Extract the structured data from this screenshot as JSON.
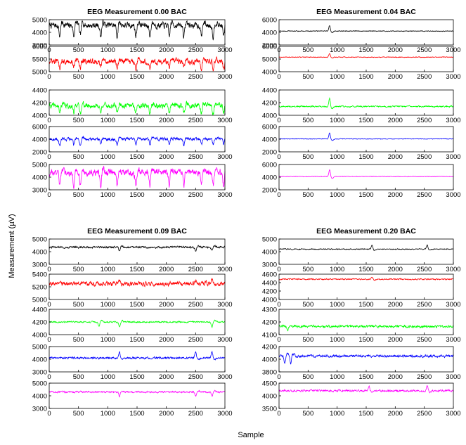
{
  "figure": {
    "ylabel": "Measurement (µV)",
    "xlabel": "Sample"
  },
  "chart_data": [
    {
      "type": "line",
      "title": "EEG Measurement 0.00 BAC",
      "xlim": [
        0,
        3000
      ],
      "xticks": [
        0,
        500,
        1000,
        1500,
        2000,
        2500,
        3000
      ],
      "channels": [
        {
          "color": "#000000",
          "ylim": [
            3000,
            5000
          ],
          "yticks": [
            3000,
            4000,
            5000
          ],
          "baseline": 4550,
          "noise": 260,
          "spike_dir": -1,
          "spike_amp": 900,
          "spikes": [
            180,
            420,
            530,
            880,
            1160,
            1480,
            1720,
            2050,
            2300,
            2600,
            2800,
            2980
          ]
        },
        {
          "color": "#ff0000",
          "ylim": [
            5000,
            6000
          ],
          "yticks": [
            5000,
            5500,
            6000
          ],
          "baseline": 5400,
          "noise": 120,
          "spike_dir": -1,
          "spike_amp": 250,
          "spikes": [
            180,
            420,
            530,
            880,
            1160,
            1480,
            1720,
            2050,
            2300,
            2600,
            2800,
            2980
          ]
        },
        {
          "color": "#00ff00",
          "ylim": [
            4000,
            4400
          ],
          "yticks": [
            4000,
            4200,
            4400
          ],
          "baseline": 4150,
          "noise": 45,
          "spike_dir": -1,
          "spike_amp": 120,
          "spikes": [
            180,
            420,
            530,
            880,
            1160,
            1480,
            1720,
            2050,
            2300,
            2600,
            2800,
            2980
          ]
        },
        {
          "color": "#0000ff",
          "ylim": [
            2000,
            6000
          ],
          "yticks": [
            2000,
            4000,
            6000
          ],
          "baseline": 4000,
          "noise": 250,
          "spike_dir": -1,
          "spike_amp": 900,
          "spikes": [
            180,
            420,
            530,
            880,
            1160,
            1480,
            1720,
            2050,
            2300,
            2600,
            2800,
            2980
          ]
        },
        {
          "color": "#ff00ff",
          "ylim": [
            3000,
            5000
          ],
          "yticks": [
            3000,
            4000,
            5000
          ],
          "baseline": 4350,
          "noise": 280,
          "spike_dir": -1,
          "spike_amp": 1000,
          "spikes": [
            180,
            420,
            530,
            880,
            1160,
            1480,
            1720,
            2050,
            2300,
            2600,
            2800,
            2980
          ]
        }
      ]
    },
    {
      "type": "line",
      "title": "EEG Measurement 0.04 BAC",
      "xlim": [
        0,
        3000
      ],
      "xticks": [
        0,
        500,
        1000,
        1500,
        2000,
        2500,
        3000
      ],
      "channels": [
        {
          "color": "#000000",
          "ylim": [
            2000,
            6000
          ],
          "yticks": [
            2000,
            4000,
            6000
          ],
          "baseline": 4200,
          "noise": 60,
          "spike_dir": 1,
          "spike_amp": 900,
          "spikes": [
            870
          ]
        },
        {
          "color": "#ff0000",
          "ylim": [
            4000,
            6000
          ],
          "yticks": [
            4000,
            5000,
            6000
          ],
          "baseline": 5150,
          "noise": 30,
          "spike_dir": 1,
          "spike_amp": 300,
          "spikes": [
            870
          ]
        },
        {
          "color": "#00ff00",
          "ylim": [
            4000,
            4400
          ],
          "yticks": [
            4000,
            4200,
            4400
          ],
          "baseline": 4140,
          "noise": 12,
          "spike_dir": 1,
          "spike_amp": 130,
          "spikes": [
            870
          ]
        },
        {
          "color": "#0000ff",
          "ylim": [
            2000,
            6000
          ],
          "yticks": [
            2000,
            4000,
            6000
          ],
          "baseline": 4050,
          "noise": 50,
          "spike_dir": 1,
          "spike_amp": 1000,
          "spikes": [
            870
          ]
        },
        {
          "color": "#ff00ff",
          "ylim": [
            2000,
            6000
          ],
          "yticks": [
            2000,
            4000,
            6000
          ],
          "baseline": 4100,
          "noise": 50,
          "spike_dir": 1,
          "spike_amp": 1100,
          "spikes": [
            870
          ]
        }
      ]
    },
    {
      "type": "line",
      "title": "EEG Measurement 0.09 BAC",
      "xlim": [
        0,
        3000
      ],
      "xticks": [
        0,
        500,
        1000,
        1500,
        2000,
        2500,
        3000
      ],
      "channels": [
        {
          "color": "#000000",
          "ylim": [
            3000,
            5000
          ],
          "yticks": [
            3000,
            4000,
            5000
          ],
          "baseline": 4350,
          "noise": 80,
          "spike_dir": -1,
          "spike_amp": 300,
          "spikes": [
            1200,
            2500,
            2780
          ]
        },
        {
          "color": "#ff0000",
          "ylim": [
            5000,
            5400
          ],
          "yticks": [
            5000,
            5200,
            5400
          ],
          "baseline": 5250,
          "noise": 35,
          "spike_dir": 1,
          "spike_amp": 60,
          "spikes": [
            1200,
            2500,
            2780
          ]
        },
        {
          "color": "#00ff00",
          "ylim": [
            4000,
            4400
          ],
          "yticks": [
            4000,
            4200,
            4400
          ],
          "baseline": 4200,
          "noise": 12,
          "spike_dir": -1,
          "spike_amp": 80,
          "spikes": [
            850,
            1200,
            2780
          ]
        },
        {
          "color": "#0000ff",
          "ylim": [
            3000,
            5000
          ],
          "yticks": [
            3000,
            4000,
            5000
          ],
          "baseline": 4100,
          "noise": 80,
          "spike_dir": 1,
          "spike_amp": 500,
          "spikes": [
            1200,
            2500,
            2780
          ]
        },
        {
          "color": "#ff00ff",
          "ylim": [
            3000,
            5000
          ],
          "yticks": [
            3000,
            4000,
            5000
          ],
          "baseline": 4300,
          "noise": 70,
          "spike_dir": -1,
          "spike_amp": 350,
          "spikes": [
            1200,
            2500,
            2780
          ]
        }
      ]
    },
    {
      "type": "line",
      "title": "EEG Measurement 0.20 BAC",
      "xlim": [
        0,
        3000
      ],
      "xticks": [
        0,
        500,
        1000,
        1500,
        2000,
        2500,
        3000
      ],
      "channels": [
        {
          "color": "#000000",
          "ylim": [
            3000,
            5000
          ],
          "yticks": [
            3000,
            4000,
            5000
          ],
          "baseline": 4200,
          "noise": 40,
          "spike_dir": 1,
          "spike_amp": 350,
          "spikes": [
            1600,
            2550
          ]
        },
        {
          "color": "#ff0000",
          "ylim": [
            4000,
            4600
          ],
          "yticks": [
            4000,
            4200,
            4400,
            4600
          ],
          "baseline": 4480,
          "noise": 15,
          "spike_dir": 1,
          "spike_amp": 60,
          "spikes": [
            1600
          ]
        },
        {
          "color": "#00ff00",
          "ylim": [
            4100,
            4300
          ],
          "yticks": [
            4100,
            4200,
            4300
          ],
          "baseline": 4165,
          "noise": 10,
          "spike_dir": -1,
          "spike_amp": 30,
          "spikes": [
            150
          ]
        },
        {
          "color": "#0000ff",
          "ylim": [
            3800,
            4200
          ],
          "yticks": [
            3800,
            4000,
            4200
          ],
          "baseline": 4050,
          "noise": 20,
          "spike_dir": -1,
          "spike_amp": 120,
          "spikes": [
            100,
            200
          ]
        },
        {
          "color": "#ff00ff",
          "ylim": [
            3500,
            4500
          ],
          "yticks": [
            3500,
            4000,
            4500
          ],
          "baseline": 4200,
          "noise": 40,
          "spike_dir": 1,
          "spike_amp": 200,
          "spikes": [
            1550,
            2550
          ]
        }
      ]
    }
  ]
}
